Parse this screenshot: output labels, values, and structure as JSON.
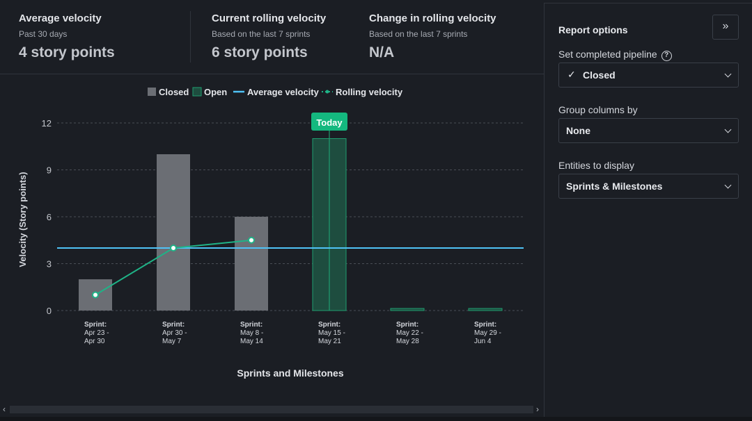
{
  "stats": [
    {
      "title": "Average velocity",
      "subtitle": "Past 30 days",
      "value": "4 story points"
    },
    {
      "title": "Current rolling velocity",
      "subtitle": "Based on the last 7 sprints",
      "value": "6 story points"
    },
    {
      "title": "Change in rolling velocity",
      "subtitle": "Based on the last 7 sprints",
      "value": "N/A"
    }
  ],
  "side": {
    "title": "Report options",
    "collapse_label": "»",
    "pipeline_label": "Set completed pipeline",
    "help_label": "?",
    "pipeline_check": "✓",
    "pipeline_value": "Closed",
    "group_label": "Group columns by",
    "group_value": "None",
    "entities_label": "Entities to display",
    "entities_value": "Sprints & Milestones"
  },
  "scroll": {
    "left": "‹",
    "right": "›"
  },
  "colors": {
    "closed": "#6b6e74",
    "open": "#1e4d3f",
    "open_stroke": "#1f9d6f",
    "average": "#4fc3f7",
    "rolling": "#1fb387",
    "today_badge": "#14b87f",
    "grid": "#4a4e56"
  },
  "chart_data": {
    "type": "bar",
    "xlabel": "Sprints and Milestones",
    "ylabel": "Velocity (Story points)",
    "ylim": [
      0,
      12
    ],
    "yticks": [
      0,
      3,
      6,
      9,
      12
    ],
    "grid": true,
    "legend_position": "top-center",
    "legend": [
      "Closed",
      "Open",
      "Average velocity",
      "Rolling velocity"
    ],
    "categories": [
      [
        "Sprint:",
        "Apr 23 -",
        "Apr 30"
      ],
      [
        "Sprint:",
        "Apr 30 -",
        "May 7"
      ],
      [
        "Sprint:",
        "May 8 -",
        "May 14"
      ],
      [
        "Sprint:",
        "May 15 -",
        "May 21"
      ],
      [
        "Sprint:",
        "May 22 -",
        "May 28"
      ],
      [
        "Sprint:",
        "May 29 -",
        "Jun 4"
      ]
    ],
    "series": [
      {
        "name": "Closed",
        "values": [
          2,
          10,
          6,
          0,
          0,
          0
        ]
      },
      {
        "name": "Open",
        "values": [
          0,
          0,
          0,
          11,
          0.1,
          0.1
        ]
      },
      {
        "name": "Average velocity",
        "value": 4
      },
      {
        "name": "Rolling velocity",
        "values": [
          1,
          4,
          4.5,
          null,
          null,
          null
        ]
      }
    ],
    "annotation": {
      "label": "Today",
      "category_index": 3
    }
  }
}
